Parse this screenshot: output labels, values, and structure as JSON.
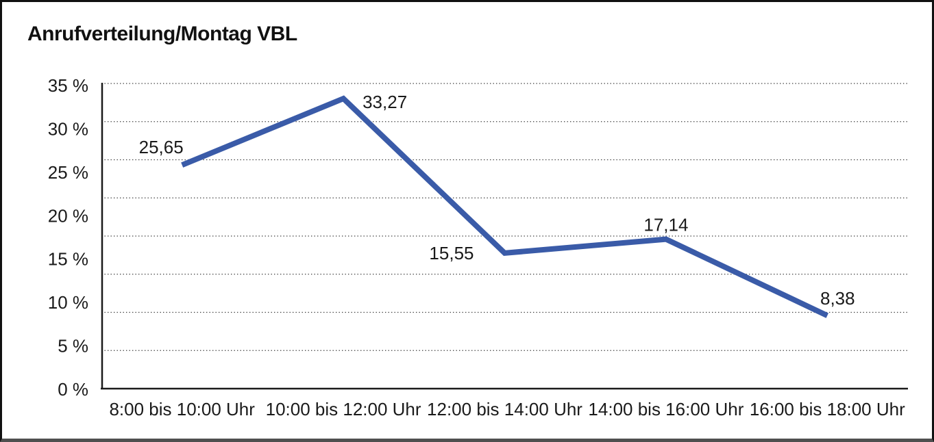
{
  "title": "Anrufverteilung/Montag VBL",
  "chart_data": {
    "type": "line",
    "title": "Anrufverteilung/Montag VBL",
    "categories": [
      "8:00 bis 10:00 Uhr",
      "10:00 bis 12:00 Uhr",
      "12:00 bis 14:00 Uhr",
      "14:00 bis 16:00 Uhr",
      "16:00 bis 18:00 Uhr"
    ],
    "values": [
      25.65,
      33.27,
      15.55,
      17.14,
      8.38
    ],
    "point_labels": [
      "25,65",
      "33,27",
      "15,55",
      "17,14",
      "8,38"
    ],
    "y_tick_labels": [
      "35 %",
      "30 %",
      "25 %",
      "20 %",
      "15 %",
      "10 %",
      "5 %",
      "0 %"
    ],
    "ylim": [
      0,
      35
    ],
    "xlabel": "",
    "ylabel": "",
    "grid": "horizontal-dotted",
    "gridline_count": 9,
    "legend_position": "none",
    "line_color": "#3a5ba8",
    "text_color": "#1a1a1a",
    "axis_color": "#1a1a1a",
    "decimal_separator": ","
  }
}
